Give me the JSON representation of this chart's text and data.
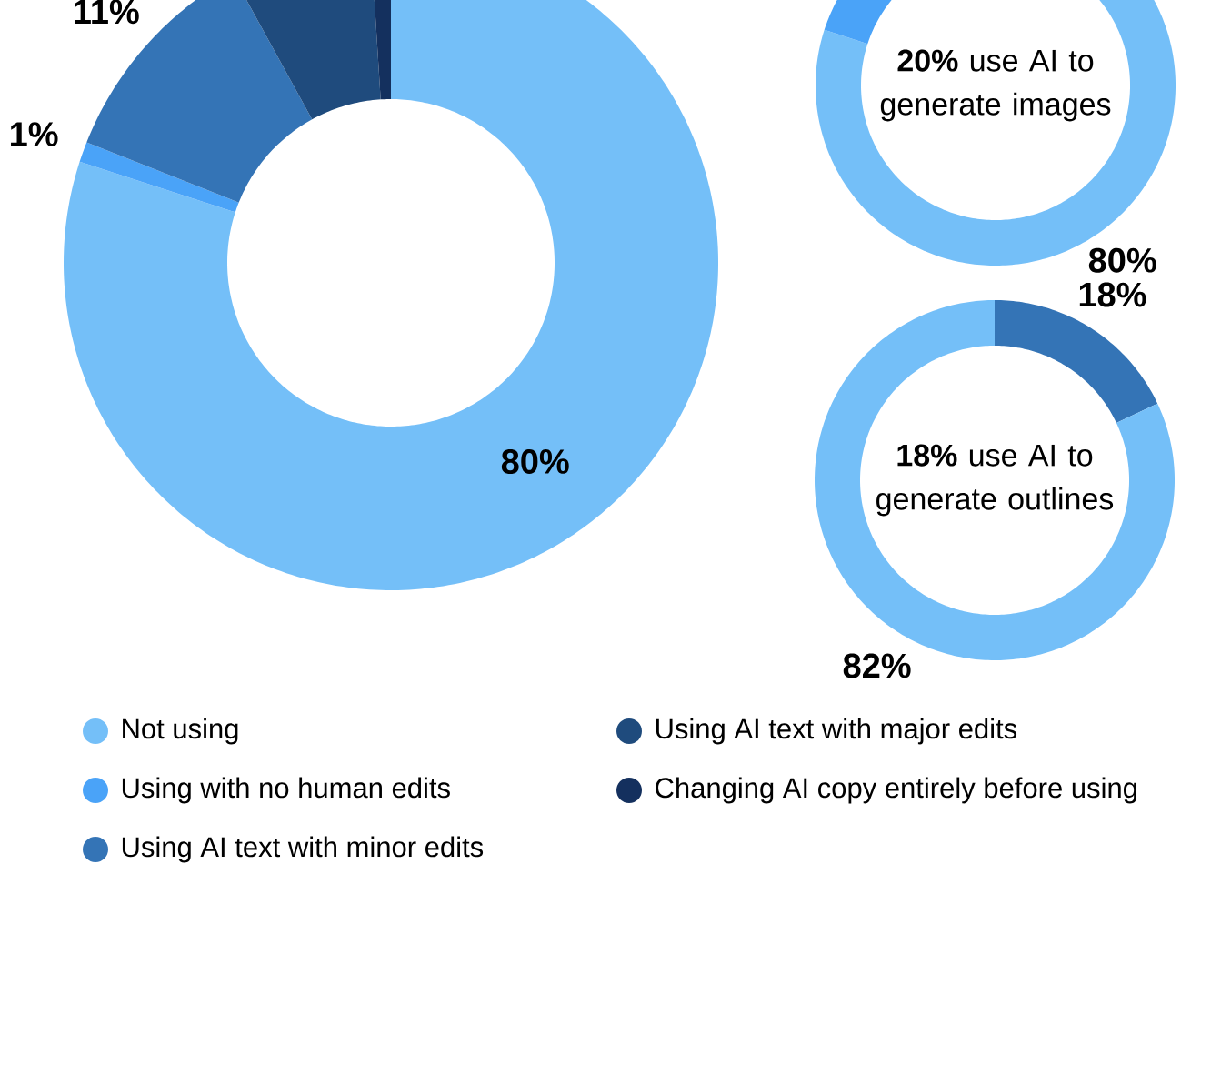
{
  "chart_data": [
    {
      "type": "donut",
      "categories": [
        "Not using",
        "Using with no human edits",
        "Using AI text with minor edits",
        "Using AI text with major edits",
        "Changing AI copy entirely before using"
      ],
      "values": [
        80,
        1,
        11,
        7,
        1
      ],
      "colors": [
        "#74bff8",
        "#4aa3f8",
        "#3474b6",
        "#1f4b7d",
        "#14305e"
      ],
      "value_labels": [
        "80%",
        "1%",
        "11%",
        null,
        null
      ],
      "legend": "bottom"
    },
    {
      "type": "donut",
      "title": "**20%** use AI to generate images",
      "categories": [
        null,
        null
      ],
      "values": [
        80,
        20
      ],
      "colors": [
        "#74bff8",
        "#4aa3f8"
      ],
      "value_labels": [
        "80%",
        null
      ]
    },
    {
      "type": "donut",
      "title": "**18%** use AI to generate outlines",
      "categories": [
        null,
        null
      ],
      "values": [
        18,
        82
      ],
      "colors": [
        "#3474b6",
        "#74bff8"
      ],
      "value_labels": [
        "18%",
        "82%"
      ]
    }
  ]
}
